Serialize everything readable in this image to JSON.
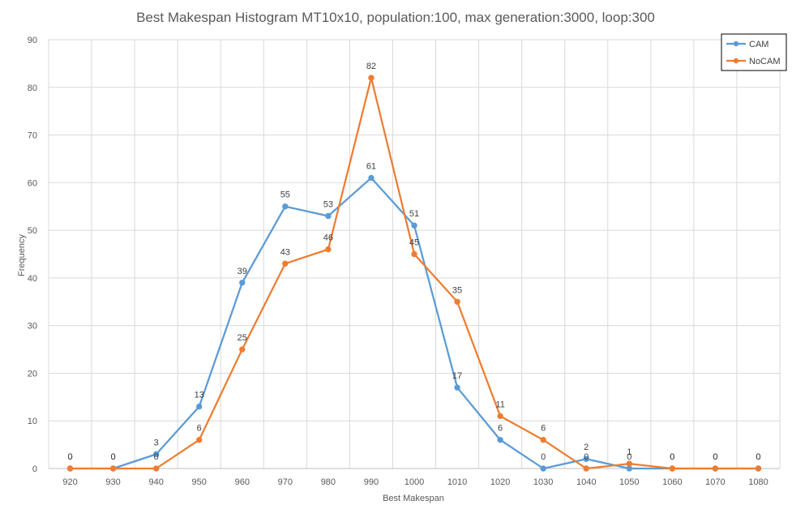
{
  "chart_data": {
    "type": "line",
    "title": "Best Makespan Histogram MT10x10, population:100, max generation:3000, loop:300",
    "xlabel": "Best Makespan",
    "ylabel": "Frequency",
    "categories": [
      "920",
      "930",
      "940",
      "950",
      "960",
      "970",
      "980",
      "990",
      "1000",
      "1010",
      "1020",
      "1030",
      "1040",
      "1050",
      "1060",
      "1070",
      "1080"
    ],
    "ylim": [
      0,
      90
    ],
    "yticks": [
      "0",
      "10",
      "20",
      "30",
      "40",
      "50",
      "60",
      "70",
      "80",
      "90"
    ],
    "grid": true,
    "legend_position": "top-right",
    "series": [
      {
        "name": "CAM",
        "color": "#5b9bd5",
        "values": [
          0,
          0,
          3,
          13,
          39,
          55,
          53,
          61,
          51,
          17,
          6,
          0,
          2,
          0,
          0,
          0,
          0
        ]
      },
      {
        "name": "NoCAM",
        "color": "#ed7d31",
        "values": [
          0,
          0,
          0,
          6,
          25,
          43,
          46,
          82,
          45,
          35,
          11,
          6,
          0,
          1,
          0,
          0,
          0
        ]
      }
    ]
  }
}
